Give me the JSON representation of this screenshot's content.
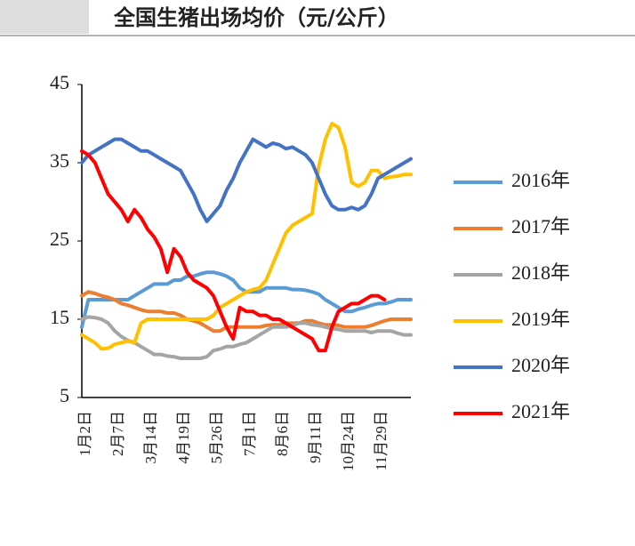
{
  "chart_data": {
    "type": "line",
    "title": "全国生猪出场均价（元/公斤）",
    "categories": [
      "1月2日",
      null,
      null,
      null,
      null,
      "2月7日",
      null,
      null,
      null,
      null,
      "3月14日",
      null,
      null,
      null,
      null,
      "4月19日",
      null,
      null,
      null,
      null,
      "5月26日",
      null,
      null,
      null,
      null,
      "7月1日",
      null,
      null,
      null,
      null,
      "8月6日",
      null,
      null,
      null,
      null,
      "9月11日",
      null,
      null,
      null,
      null,
      "10月24日",
      null,
      null,
      null,
      null,
      "11月29日",
      null,
      null,
      null,
      null,
      null
    ],
    "ylim": [
      5,
      45
    ],
    "yticks": [
      5,
      15,
      25,
      35,
      45
    ],
    "grid": false,
    "series": [
      {
        "name": "2016年",
        "color": "#5b9bd5",
        "values": [
          14,
          17.5,
          17.5,
          17.5,
          17.5,
          17.5,
          17.5,
          17.5,
          18,
          18.5,
          19,
          19.5,
          19.5,
          19.5,
          20,
          20,
          20.5,
          20.5,
          20.8,
          21,
          21,
          20.8,
          20.5,
          20,
          19,
          18.5,
          18.5,
          18.5,
          19,
          19,
          19,
          19,
          18.8,
          18.8,
          18.7,
          18.5,
          18.2,
          17.5,
          17,
          16.5,
          16,
          16,
          16.3,
          16.5,
          16.8,
          17,
          17,
          17.2,
          17.5,
          17.5,
          17.5
        ]
      },
      {
        "name": "2017年",
        "color": "#ed7d31",
        "values": [
          18,
          18.5,
          18.3,
          18,
          17.8,
          17.5,
          17,
          16.8,
          16.5,
          16.2,
          16,
          16,
          16,
          15.8,
          15.8,
          15.5,
          15,
          14.8,
          14.5,
          14,
          13.5,
          13.5,
          14,
          14,
          14,
          14,
          14,
          14,
          14.2,
          14.3,
          14.3,
          14.5,
          14.5,
          14.5,
          14.8,
          14.8,
          14.5,
          14.3,
          14.3,
          14.2,
          14,
          14,
          14,
          14,
          14.2,
          14.5,
          14.8,
          15,
          15,
          15,
          15
        ]
      },
      {
        "name": "2018年",
        "color": "#a5a5a5",
        "values": [
          15,
          15.3,
          15.2,
          15,
          14.5,
          13.5,
          12.8,
          12.3,
          12,
          11.5,
          11,
          10.5,
          10.5,
          10.3,
          10.2,
          10,
          10,
          10,
          10,
          10.2,
          11,
          11.2,
          11.5,
          11.5,
          11.8,
          12,
          12.5,
          13,
          13.5,
          14,
          14,
          14,
          14.2,
          14.5,
          14.5,
          14.3,
          14.2,
          14,
          13.8,
          13.7,
          13.5,
          13.5,
          13.5,
          13.5,
          13.3,
          13.5,
          13.5,
          13.5,
          13.2,
          13,
          13
        ]
      },
      {
        "name": "2019年",
        "color": "#ffc000",
        "values": [
          13,
          12.5,
          12,
          11.2,
          11.3,
          11.8,
          12,
          12.2,
          12,
          14.5,
          15,
          15,
          15,
          15,
          15,
          15,
          15,
          15,
          15,
          15,
          15.5,
          16.5,
          17,
          17.5,
          18,
          18.5,
          18.8,
          19,
          20,
          22,
          24,
          26,
          27,
          27.5,
          28,
          28.5,
          34.5,
          38,
          40,
          39.5,
          37,
          32.5,
          32,
          32.5,
          34,
          34,
          33,
          33.2,
          33.3,
          33.5,
          33.5
        ]
      },
      {
        "name": "2020年",
        "color": "#4472c4",
        "values": [
          35,
          36,
          36.5,
          37,
          37.5,
          38,
          38,
          37.5,
          37,
          36.5,
          36.5,
          36,
          35.5,
          35,
          34.5,
          34,
          32.5,
          31,
          29,
          27.5,
          28.5,
          29.5,
          31.5,
          33,
          35,
          36.5,
          38,
          37.5,
          37,
          37.5,
          37.3,
          36.8,
          37,
          36.5,
          36,
          35,
          33,
          31,
          29.5,
          29,
          29,
          29.3,
          29,
          29.5,
          31,
          33,
          33.5,
          34,
          34.5,
          35,
          35.5
        ]
      },
      {
        "name": "2021年",
        "color": "#ff0000",
        "values": [
          36.5,
          36,
          35,
          33,
          31,
          30,
          29,
          27.5,
          29,
          28,
          26.5,
          25.5,
          24,
          21,
          24,
          23,
          21,
          20,
          19.5,
          19,
          18,
          16,
          14,
          12.5,
          16.5,
          16,
          16,
          15.5,
          15.5,
          15,
          15,
          14.5,
          14,
          13.5,
          13,
          12.5,
          11,
          11,
          14,
          16,
          16.5,
          17,
          17,
          17.5,
          18,
          18,
          17.5,
          null,
          null,
          null,
          null
        ]
      }
    ]
  }
}
